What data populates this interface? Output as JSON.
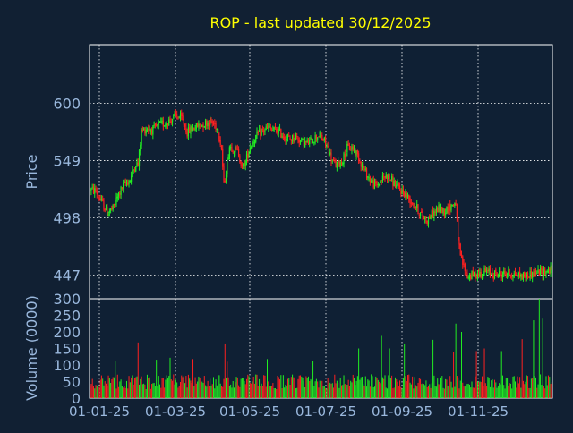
{
  "chart_data": [
    {
      "type": "candlestick",
      "title": "ROP - last updated 30/12/2025",
      "ylabel": "Price",
      "yticks": [
        600,
        549,
        498,
        447
      ],
      "ylim": [
        426,
        652
      ],
      "xticks": [
        "01-01-25",
        "01-03-25",
        "01-05-25",
        "01-07-25",
        "01-09-25",
        "01-11-25"
      ],
      "grid": true,
      "colors": {
        "up": "#22ee22",
        "down": "#ff2020",
        "grid": "#ffffff",
        "text": "#9ab8dd",
        "title": "#ffff00",
        "frame": "#ffffff",
        "background": "#112033"
      },
      "price_path": [
        [
          0,
          523
        ],
        [
          5,
          522
        ],
        [
          10,
          512
        ],
        [
          15,
          503
        ],
        [
          20,
          506
        ],
        [
          25,
          519
        ],
        [
          30,
          528
        ],
        [
          35,
          532
        ],
        [
          40,
          547
        ],
        [
          42,
          545
        ],
        [
          45,
          575
        ],
        [
          50,
          578
        ],
        [
          55,
          576
        ],
        [
          60,
          580
        ],
        [
          65,
          582
        ],
        [
          70,
          585
        ],
        [
          75,
          589
        ],
        [
          80,
          586
        ],
        [
          82,
          582
        ],
        [
          85,
          574
        ],
        [
          90,
          578
        ],
        [
          95,
          580
        ],
        [
          100,
          582
        ],
        [
          105,
          584
        ],
        [
          110,
          580
        ],
        [
          112,
          575
        ],
        [
          115,
          560
        ],
        [
          117,
          527
        ],
        [
          119,
          540
        ],
        [
          122,
          562
        ],
        [
          125,
          560
        ],
        [
          130,
          556
        ],
        [
          133,
          542
        ],
        [
          136,
          548
        ],
        [
          140,
          562
        ],
        [
          145,
          570
        ],
        [
          150,
          575
        ],
        [
          155,
          578
        ],
        [
          160,
          576
        ],
        [
          165,
          575
        ],
        [
          170,
          570
        ],
        [
          175,
          568
        ],
        [
          180,
          570
        ],
        [
          185,
          566
        ],
        [
          190,
          564
        ],
        [
          195,
          568
        ],
        [
          200,
          572
        ],
        [
          205,
          566
        ],
        [
          208,
          560
        ],
        [
          212,
          548
        ],
        [
          215,
          545
        ],
        [
          220,
          548
        ],
        [
          225,
          560
        ],
        [
          230,
          560
        ],
        [
          235,
          552
        ],
        [
          240,
          540
        ],
        [
          245,
          532
        ],
        [
          250,
          526
        ],
        [
          255,
          532
        ],
        [
          260,
          536
        ],
        [
          265,
          530
        ],
        [
          270,
          524
        ],
        [
          275,
          520
        ],
        [
          280,
          514
        ],
        [
          285,
          508
        ],
        [
          290,
          500
        ],
        [
          295,
          496
        ],
        [
          300,
          502
        ],
        [
          305,
          506
        ],
        [
          310,
          504
        ],
        [
          315,
          508
        ],
        [
          318,
          510
        ],
        [
          320,
          512
        ],
        [
          322,
          476
        ],
        [
          325,
          460
        ],
        [
          328,
          452
        ],
        [
          330,
          446
        ],
        [
          335,
          447
        ],
        [
          340,
          448
        ],
        [
          345,
          450
        ],
        [
          350,
          449
        ],
        [
          355,
          448
        ],
        [
          360,
          448
        ],
        [
          365,
          449
        ],
        [
          370,
          448
        ],
        [
          375,
          447
        ],
        [
          380,
          446
        ],
        [
          385,
          448
        ],
        [
          390,
          449
        ],
        [
          395,
          450
        ],
        [
          400,
          451
        ],
        [
          404,
          452
        ]
      ],
      "volume": {
        "ylabel": "Volume (0000)",
        "yticks": [
          300,
          250,
          200,
          150,
          100,
          50,
          0
        ],
        "ylim": [
          0,
          300
        ],
        "base_level": 60,
        "spikes": [
          [
            22,
            112
          ],
          [
            42,
            168
          ],
          [
            58,
            116
          ],
          [
            70,
            122
          ],
          [
            90,
            118
          ],
          [
            118,
            165
          ],
          [
            120,
            110
          ],
          [
            155,
            118
          ],
          [
            195,
            112
          ],
          [
            235,
            150
          ],
          [
            255,
            188
          ],
          [
            262,
            150
          ],
          [
            275,
            165
          ],
          [
            300,
            176
          ],
          [
            318,
            140
          ],
          [
            320,
            225
          ],
          [
            325,
            200
          ],
          [
            338,
            142
          ],
          [
            345,
            150
          ],
          [
            360,
            142
          ],
          [
            378,
            178
          ],
          [
            388,
            235
          ],
          [
            393,
            300
          ],
          [
            396,
            240
          ]
        ]
      },
      "n_days": 405
    }
  ]
}
